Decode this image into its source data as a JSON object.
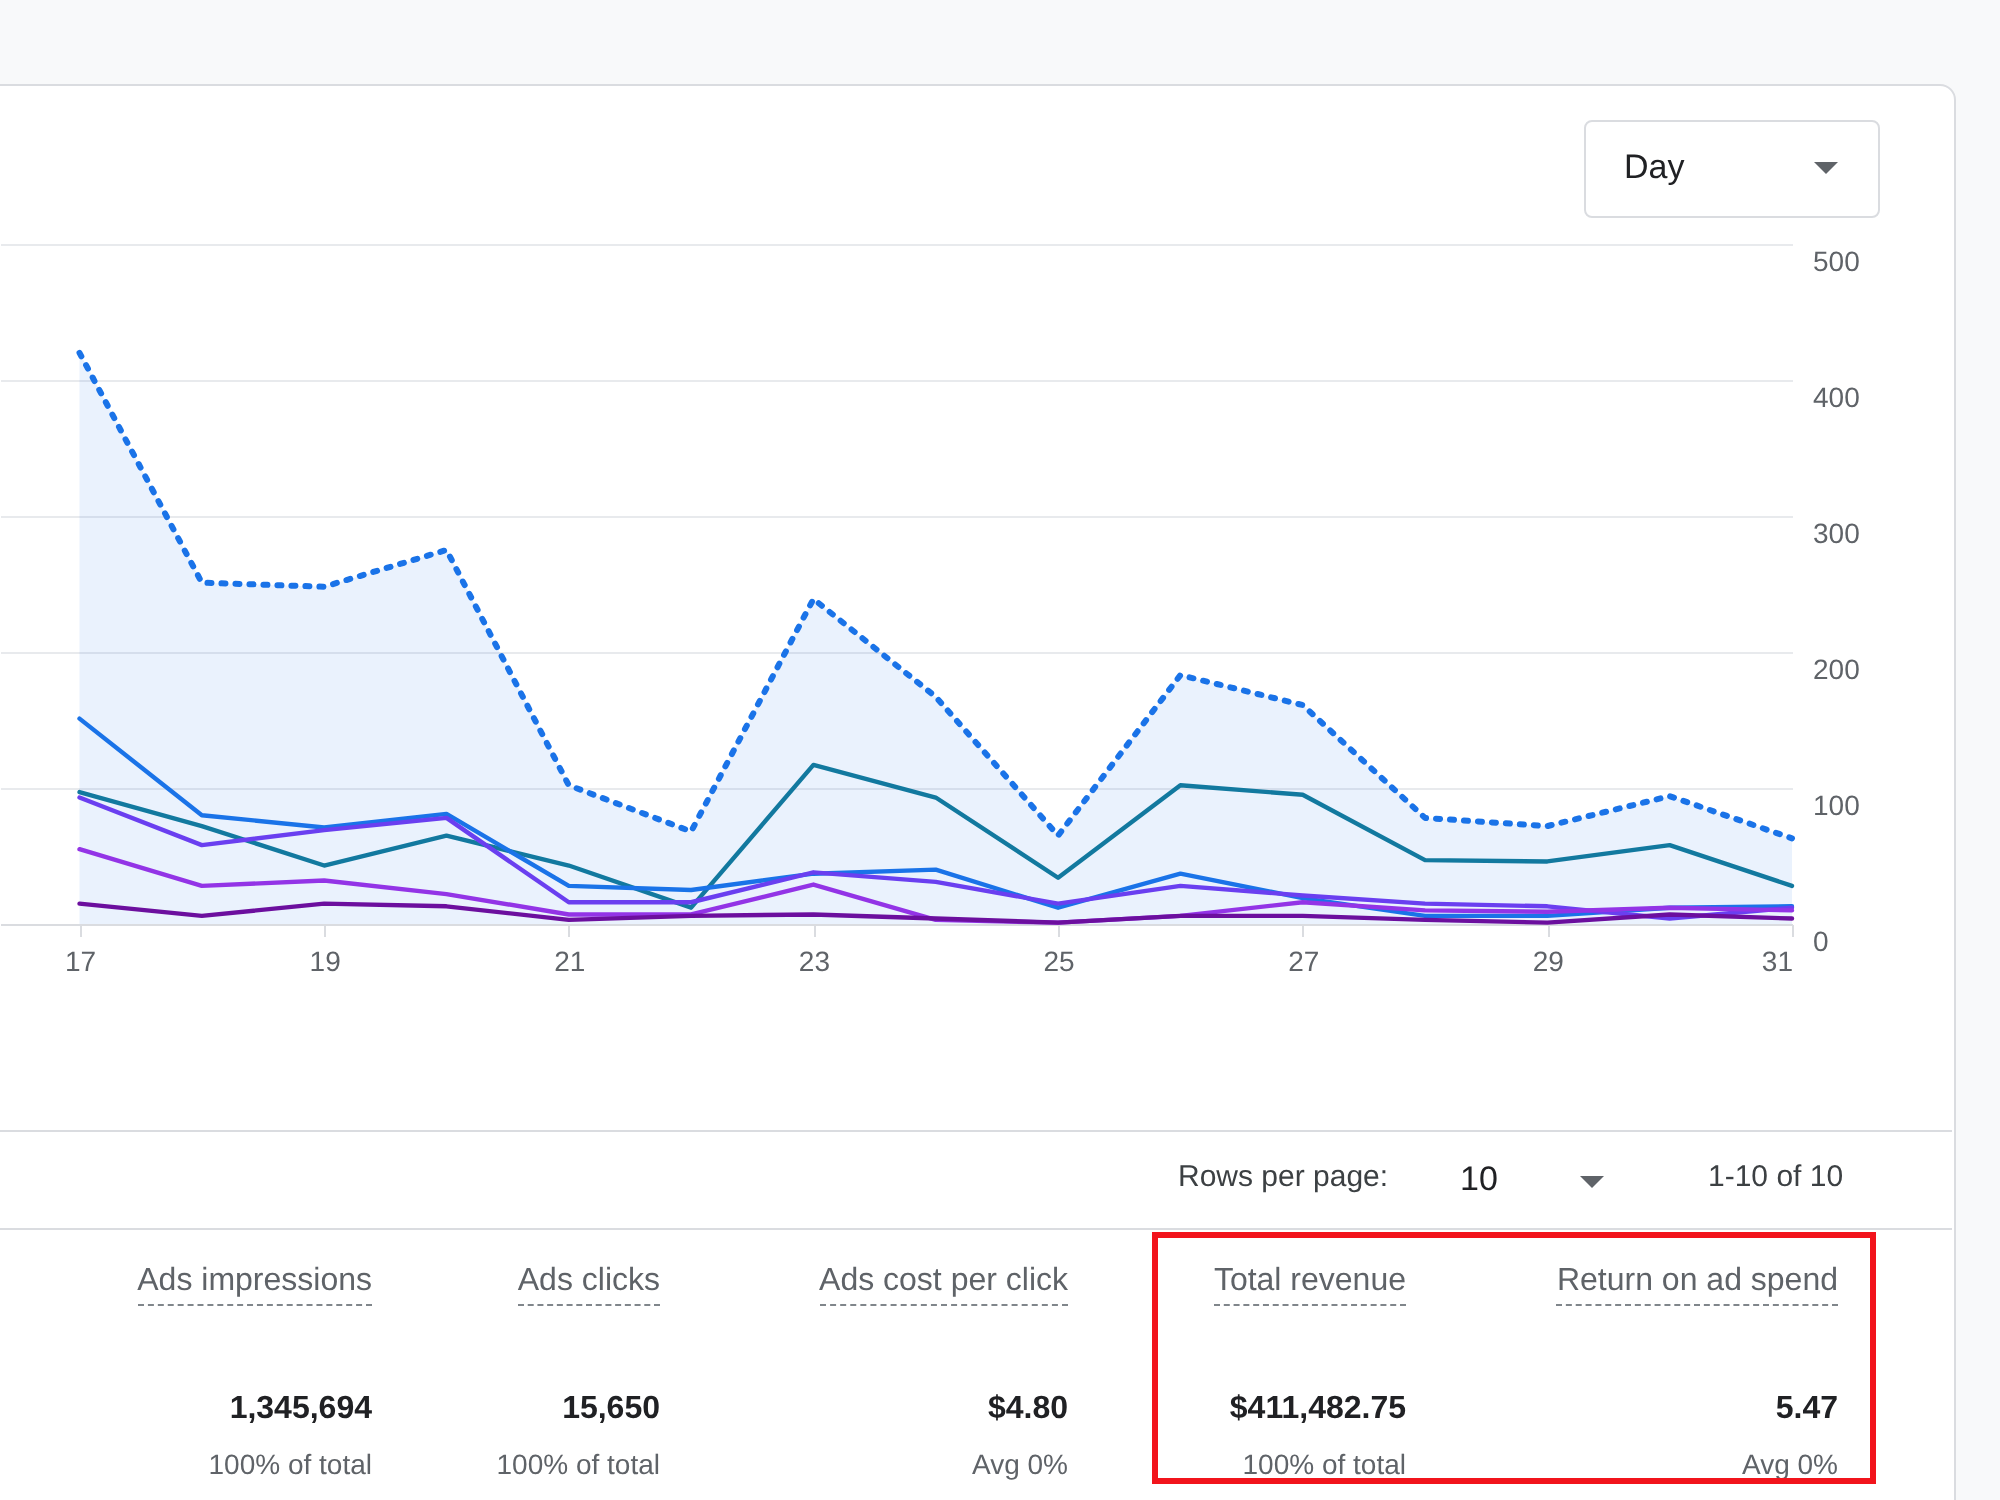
{
  "chart_data": {
    "type": "line",
    "x": [
      17,
      18,
      19,
      20,
      21,
      22,
      23,
      24,
      25,
      26,
      27,
      28,
      29,
      30,
      31
    ],
    "xlim": [
      16.35,
      31
    ],
    "xticks": [
      17,
      19,
      21,
      23,
      25,
      27,
      29,
      31
    ],
    "ylim": [
      0,
      500
    ],
    "yticks": [
      0,
      100,
      200,
      300,
      400,
      500
    ],
    "grid": "y",
    "series": [
      {
        "type": "area",
        "line_style": "dotted",
        "color": "#1a73e8",
        "values": [
          420,
          251,
          248,
          275,
          102,
          68,
          239,
          167,
          65,
          183,
          161,
          78,
          72,
          94,
          63
        ]
      },
      {
        "color": "#12799f",
        "values": [
          97,
          72,
          43,
          65,
          43,
          12,
          117,
          93,
          34,
          102,
          95,
          47,
          46,
          58,
          28
        ]
      },
      {
        "color": "#1a73e8",
        "values": [
          151,
          80,
          71,
          81,
          28,
          25,
          37,
          40,
          12,
          37,
          19,
          6,
          6,
          12,
          13
        ]
      },
      {
        "color": "#6a3ff0",
        "values": [
          93,
          58,
          69,
          78,
          16,
          16,
          38,
          31,
          15,
          28,
          21,
          15,
          13,
          4,
          12
        ]
      },
      {
        "color": "#9334e6",
        "values": [
          55,
          28,
          32,
          22,
          7,
          7,
          29,
          3,
          1,
          6,
          16,
          10,
          9,
          12,
          10
        ]
      },
      {
        "color": "#6c0f9e",
        "values": [
          15,
          6,
          15,
          13,
          3,
          6,
          7,
          4,
          1,
          6,
          6,
          3,
          1,
          7,
          4
        ]
      }
    ],
    "annotations": [
      "Day",
      "Rows per page:",
      "10",
      "1-10 of 10",
      "Ads impressions",
      "Ads clicks",
      "Ads cost per click",
      "Total revenue",
      "Return on ad spend",
      "1,345,694",
      "15,650",
      "$4.80",
      "$411,482.75",
      "5.47",
      "100% of total",
      "100% of total",
      "Avg 0%",
      "100% of total",
      "Avg 0%"
    ]
  }
}
